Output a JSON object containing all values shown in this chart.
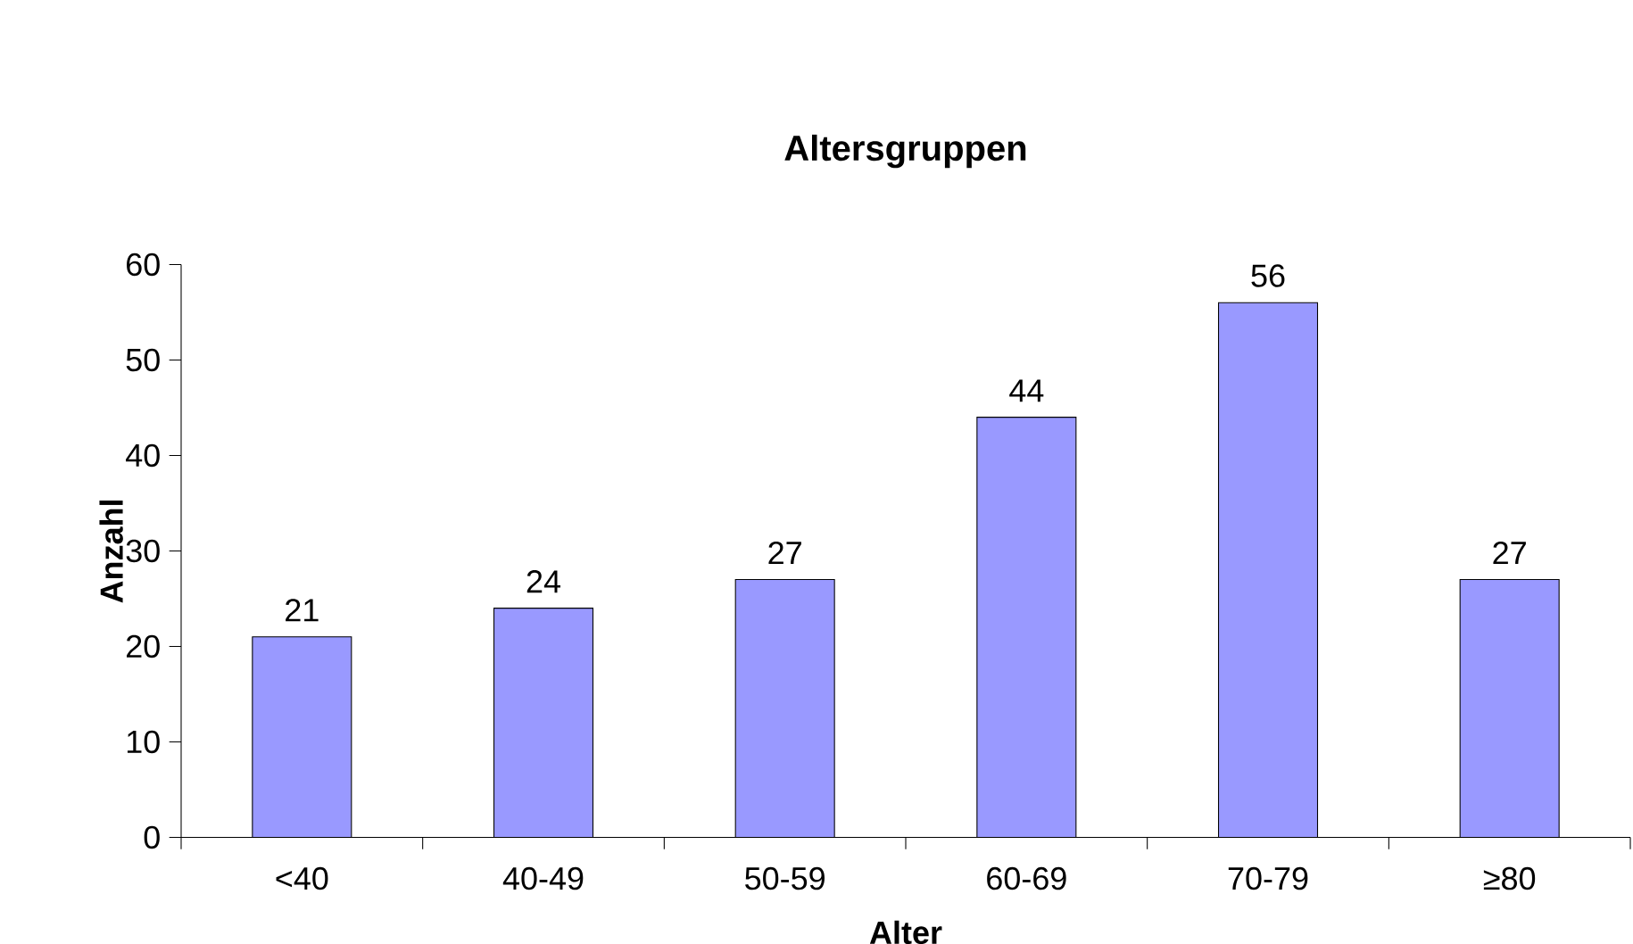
{
  "chart_data": {
    "type": "bar",
    "title": "Altersgruppen",
    "xlabel": "Alter",
    "ylabel": "Anzahl",
    "categories": [
      "<40",
      "40-49",
      "50-59",
      "60-69",
      "70-79",
      "≥80"
    ],
    "values": [
      21,
      24,
      27,
      44,
      56,
      27
    ],
    "color": "#9999ff",
    "ylim": [
      0,
      60
    ],
    "yticks": [
      0,
      10,
      20,
      30,
      40,
      50,
      60
    ],
    "data_labels": true
  }
}
